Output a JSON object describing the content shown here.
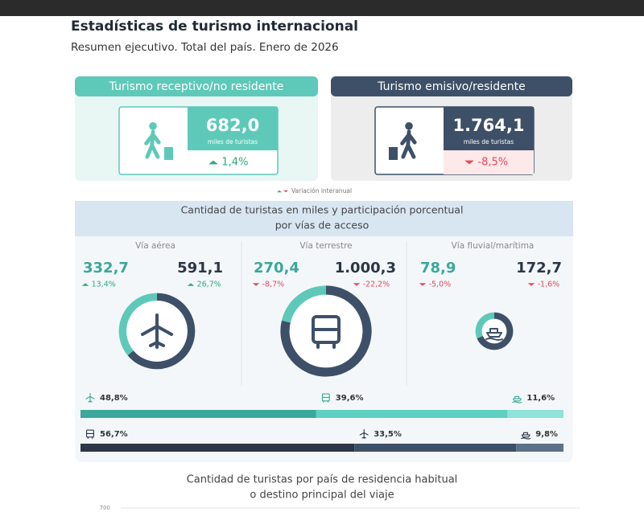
{
  "header": {
    "title": "Estadísticas de turismo internacional",
    "subtitle": "Resumen ejecutivo. Total del país. Enero de 2026"
  },
  "cards": [
    {
      "title": "Turismo receptivo/no residente",
      "value": "682,0",
      "unit": "miles de turistas",
      "variation": {
        "direction": "up",
        "text": "1,4%"
      },
      "color": "#5ec9b9"
    },
    {
      "title": "Turismo emisivo/residente",
      "value": "1.764,1",
      "unit": "miles de turistas",
      "variation": {
        "direction": "down",
        "text": "-8,5%"
      },
      "color": "#3d5068"
    }
  ],
  "legend_note": "Variación interanual",
  "access": {
    "title_lines": [
      "Cantidad de turistas en miles y participación porcentual",
      "por vías de acceso"
    ],
    "ways": [
      {
        "name": "Vía aérea",
        "icon": "plane",
        "receptive": {
          "value": 332.7,
          "label": "332,7",
          "variation": {
            "direction": "up",
            "text": "13,4%"
          }
        },
        "outbound": {
          "value": 591.1,
          "label": "591,1",
          "variation": {
            "direction": "up",
            "text": "26,7%"
          }
        }
      },
      {
        "name": "Vía terrestre",
        "icon": "bus",
        "receptive": {
          "value": 270.4,
          "label": "270,4",
          "variation": {
            "direction": "down",
            "text": "-8,7%"
          }
        },
        "outbound": {
          "value": 1000.3,
          "label": "1.000,3",
          "variation": {
            "direction": "down",
            "text": "-22,2%"
          }
        }
      },
      {
        "name": "Vía fluvial/marítima",
        "icon": "ship",
        "receptive": {
          "value": 78.9,
          "label": "78,9",
          "variation": {
            "direction": "down",
            "text": "-5,0%"
          }
        },
        "outbound": {
          "value": 172.7,
          "label": "172,7",
          "variation": {
            "direction": "down",
            "text": "-1,6%"
          }
        }
      }
    ],
    "share_rows": [
      {
        "segments": [
          {
            "icon": "plane",
            "value": 48.8,
            "label": "48,8%",
            "color": "#3aa89a"
          },
          {
            "icon": "bus",
            "value": 39.6,
            "label": "39,6%",
            "color": "#5ecfc0"
          },
          {
            "icon": "ship",
            "value": 11.6,
            "label": "11,6%",
            "color": "#8fe3d8"
          }
        ]
      },
      {
        "segments": [
          {
            "icon": "bus",
            "value": 56.7,
            "label": "56,7%",
            "color": "#2b3646"
          },
          {
            "icon": "plane",
            "value": 33.5,
            "label": "33,5%",
            "color": "#3d5068"
          },
          {
            "icon": "ship",
            "value": 9.8,
            "label": "9,8%",
            "color": "#5d7288"
          }
        ]
      }
    ]
  },
  "country_section": {
    "title_lines": [
      "Cantidad de turistas por país de residencia habitual",
      "o destino principal del viaje"
    ],
    "axis_top_label": "700"
  }
}
